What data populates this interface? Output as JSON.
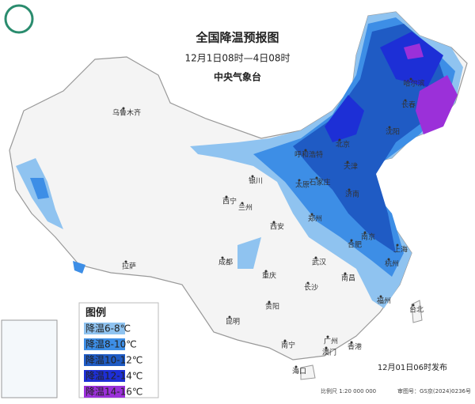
{
  "title": "全国降温预报图",
  "subtitle": "12月1日08时—4日08时",
  "agency": "中央气象台",
  "legend": {
    "title": "图例",
    "items": [
      {
        "label": "降温6-8℃",
        "color": "#8fc3f0"
      },
      {
        "label": "降温8-10℃",
        "color": "#3d8ee6"
      },
      {
        "label": "降温10-12℃",
        "color": "#1f5bc4"
      },
      {
        "label": "降温12-14℃",
        "color": "#1d2fd6"
      },
      {
        "label": "降温14-16℃",
        "color": "#9b30d9"
      }
    ]
  },
  "cities": [
    "乌鲁木齐",
    "哈尔滨",
    "长春",
    "沈阳",
    "呼和浩特",
    "北京",
    "天津",
    "石家庄",
    "太原",
    "银川",
    "济南",
    "西宁",
    "兰州",
    "郑州",
    "西安",
    "合肥",
    "南京",
    "上海",
    "杭州",
    "成都",
    "武汉",
    "拉萨",
    "重庆",
    "长沙",
    "南昌",
    "福州",
    "贵阳",
    "台北",
    "昆明",
    "南宁",
    "广州",
    "香港",
    "澳门",
    "海口"
  ],
  "footer": {
    "issued": "12月01日06时发布",
    "scale": "比例尺 1:20 000 000",
    "review": "审图号：GS京(2024)0236号"
  }
}
